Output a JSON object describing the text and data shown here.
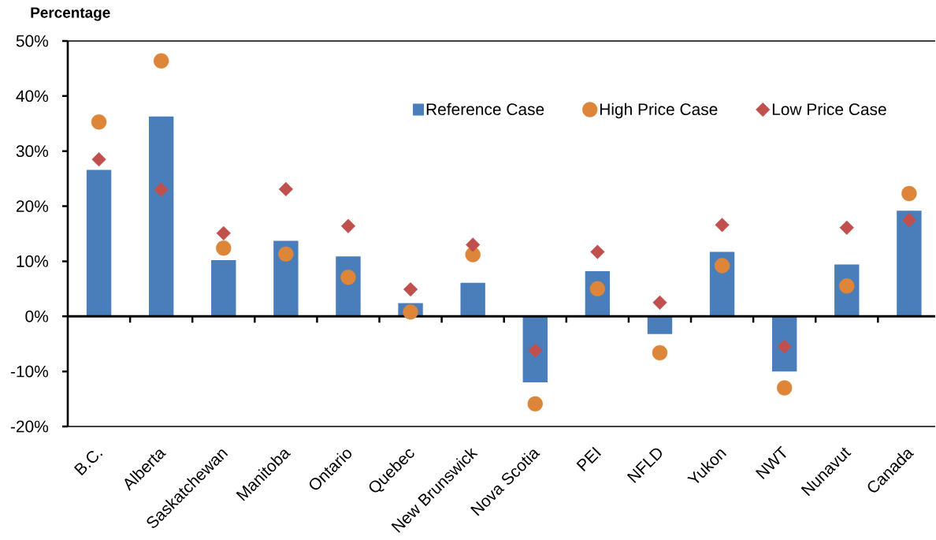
{
  "chart_data": {
    "type": "bar",
    "ylabel": "Percentage",
    "categories": [
      "B.C.",
      "Alberta",
      "Saskatchewan",
      "Manitoba",
      "Ontario",
      "Quebec",
      "New Brunswick",
      "Nova Scotia",
      "PEI",
      "NFLD",
      "Yukon",
      "NWT",
      "Nunavut",
      "Canada"
    ],
    "series": [
      {
        "name": "Reference Case",
        "color": "#4a7ebb",
        "values": [
          26.6,
          36.3,
          10.2,
          13.7,
          10.9,
          2.4,
          6.1,
          -12.0,
          8.2,
          -3.2,
          11.7,
          -10.0,
          9.4,
          19.2
        ]
      },
      {
        "name": "High Price Case",
        "type": "scatter",
        "marker": "circle",
        "color": "#dd8538",
        "values": [
          35.3,
          46.4,
          12.4,
          11.3,
          7.1,
          0.8,
          11.2,
          -15.9,
          5.0,
          -6.6,
          9.2,
          -13.0,
          5.5,
          22.3
        ]
      },
      {
        "name": "Low Price Case",
        "type": "scatter",
        "marker": "diamond",
        "color": "#c0504d",
        "values": [
          28.5,
          23.0,
          15.1,
          23.1,
          16.4,
          4.9,
          13.0,
          -6.2,
          11.7,
          2.5,
          16.6,
          -5.5,
          16.1,
          17.5
        ]
      }
    ],
    "ylim": [
      -20,
      50
    ],
    "yticks": [
      {
        "value": -20,
        "label": "-20%"
      },
      {
        "value": -10,
        "label": "-10%"
      },
      {
        "value": 0,
        "label": "0%"
      },
      {
        "value": 10,
        "label": "10%"
      },
      {
        "value": 20,
        "label": "20%"
      },
      {
        "value": 30,
        "label": "30%"
      },
      {
        "value": 40,
        "label": "40%"
      },
      {
        "value": 50,
        "label": "50%"
      }
    ],
    "legend": "top right"
  }
}
